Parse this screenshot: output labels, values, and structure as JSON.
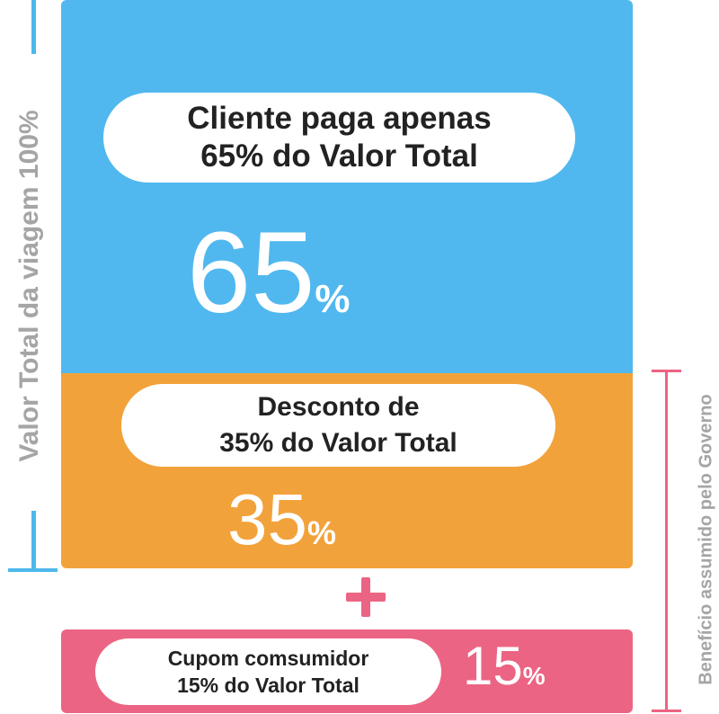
{
  "left_label": "Valor Total da viagem 100%",
  "right_label": "Benefício assumido pelo Governo",
  "blue_block": {
    "pill_line1": "Cliente paga apenas",
    "pill_line2": "65% do Valor Total",
    "big_number": "65",
    "big_unit": "%"
  },
  "orange_block": {
    "pill_line1": "Desconto de",
    "pill_line2": "35% do Valor Total",
    "big_number": "35",
    "big_unit": "%"
  },
  "pink_block": {
    "pill_line1": "Cupom comsumidor",
    "pill_line2": "15% do Valor Total",
    "big_number": "15",
    "big_unit": "%"
  },
  "colors": {
    "blue": "#51b8ef",
    "orange": "#f2a23a",
    "pink": "#ec6483",
    "label_gray": "#a5a5a5"
  }
}
